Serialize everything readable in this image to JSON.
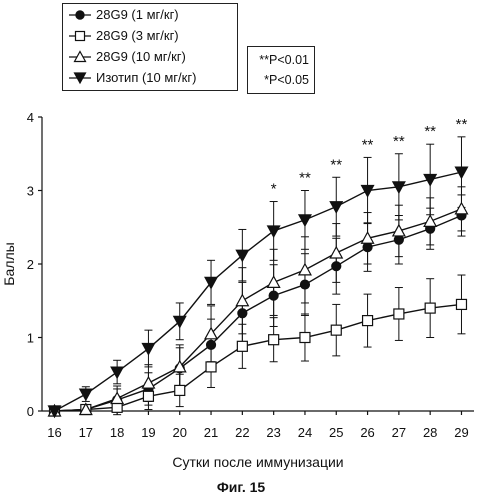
{
  "chart_data": {
    "type": "line",
    "title": "",
    "xlabel": "Сутки после иммунизации",
    "ylabel": "Баллы",
    "x": [
      16,
      17,
      18,
      19,
      20,
      21,
      22,
      23,
      24,
      25,
      26,
      27,
      28,
      29
    ],
    "xlim": [
      15.6,
      29.4
    ],
    "ylim": [
      0,
      4
    ],
    "yticks": [
      0,
      1,
      2,
      3,
      4
    ],
    "series": [
      {
        "name": "28G9 (1 мг/кг)",
        "marker": "filled-circle",
        "values": [
          0,
          0.02,
          0.15,
          0.3,
          0.58,
          0.9,
          1.33,
          1.57,
          1.72,
          1.97,
          2.23,
          2.33,
          2.48,
          2.66
        ],
        "errors": [
          0,
          0.05,
          0.15,
          0.22,
          0.28,
          0.35,
          0.42,
          0.42,
          0.42,
          0.38,
          0.33,
          0.33,
          0.28,
          0.28
        ]
      },
      {
        "name": "28G9 (3 мг/кг)",
        "marker": "open-square",
        "values": [
          0,
          0.02,
          0.05,
          0.2,
          0.28,
          0.6,
          0.88,
          0.97,
          1.0,
          1.1,
          1.23,
          1.32,
          1.4,
          1.45
        ],
        "errors": [
          0,
          0.05,
          0.1,
          0.18,
          0.22,
          0.28,
          0.3,
          0.3,
          0.32,
          0.35,
          0.36,
          0.36,
          0.4,
          0.4
        ]
      },
      {
        "name": "28G9 (10 мг/кг)",
        "marker": "open-triangle-up",
        "values": [
          0,
          0.02,
          0.17,
          0.38,
          0.6,
          1.05,
          1.5,
          1.75,
          1.92,
          2.15,
          2.35,
          2.45,
          2.58,
          2.75
        ],
        "errors": [
          0,
          0.05,
          0.17,
          0.25,
          0.3,
          0.38,
          0.45,
          0.45,
          0.45,
          0.4,
          0.35,
          0.35,
          0.32,
          0.3
        ]
      },
      {
        "name": "Изотип (10 мг/кг)",
        "marker": "filled-triangle-down",
        "values": [
          0,
          0.23,
          0.53,
          0.85,
          1.22,
          1.75,
          2.12,
          2.45,
          2.6,
          2.78,
          3.0,
          3.05,
          3.15,
          3.25
        ],
        "errors": [
          0,
          0.1,
          0.16,
          0.25,
          0.25,
          0.3,
          0.35,
          0.4,
          0.4,
          0.4,
          0.45,
          0.45,
          0.48,
          0.48
        ]
      }
    ],
    "annotations": [
      {
        "x": 23,
        "text": "*"
      },
      {
        "x": 24,
        "text": "**"
      },
      {
        "x": 25,
        "text": "**"
      },
      {
        "x": 26,
        "text": "**"
      },
      {
        "x": 27,
        "text": "**"
      },
      {
        "x": 28,
        "text": "**"
      },
      {
        "x": 29,
        "text": "**"
      }
    ],
    "significance": [
      "**P<0.01",
      "*P<0.05"
    ],
    "legend_position": "top-left",
    "grid": false
  },
  "figure_caption": "Фиг. 15"
}
